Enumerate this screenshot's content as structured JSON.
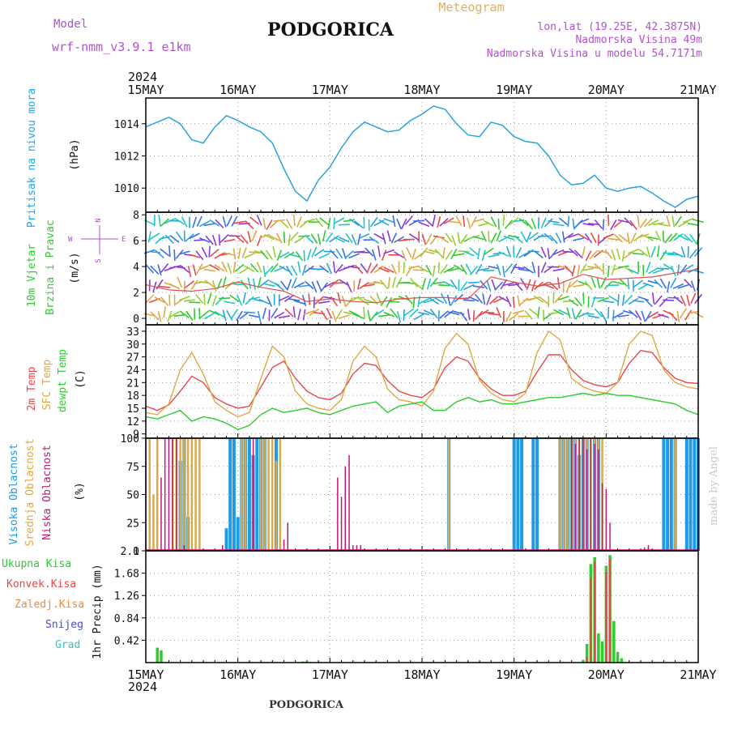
{
  "header": {
    "model_label": "Model",
    "model_name": "wrf-nmm_v3.9.1 e1km",
    "station": "PODGORICA",
    "product": "Meteogram",
    "coords": "lon,lat (19.25E, 42.3875N)",
    "elevation": "Nadmorska Visina 49m",
    "model_elevation": "Nadmorska Visina u modelu 54.7171m",
    "footer_station": "PODGORICA",
    "watermark": "made by Angel"
  },
  "colors": {
    "pressure": "#29a3e0",
    "temp2m": "#e8484a",
    "sfc_temp": "#e0a845",
    "dewpoint": "#2ecc2e",
    "high_cloud": "#1e9be6",
    "mid_cloud": "#e0a845",
    "low_cloud": "#c0187a",
    "total_precip": "#2ecc2e",
    "conv_precip": "#e8484a",
    "header_purple": "#b152d0",
    "header_orange": "#e0b060"
  },
  "time_axis": {
    "year": "2024",
    "day_labels": [
      "15MAY",
      "16MAY",
      "17MAY",
      "18MAY",
      "19MAY",
      "20MAY",
      "21MAY"
    ],
    "hours_total": 144
  },
  "chart_data": [
    {
      "type": "line",
      "panel": "pressure",
      "ylabel": "Pritisak na nivou mora",
      "unit": "(hPa)",
      "ylim": [
        1008.5,
        1015.6
      ],
      "yticks": [
        1010,
        1012,
        1014
      ],
      "grid": true,
      "x_hours": [
        0,
        3,
        6,
        9,
        12,
        15,
        18,
        21,
        24,
        27,
        30,
        33,
        36,
        39,
        42,
        45,
        48,
        51,
        54,
        57,
        60,
        63,
        66,
        69,
        72,
        75,
        78,
        81,
        84,
        87,
        90,
        93,
        96,
        99,
        102,
        105,
        108,
        111,
        114,
        117,
        120,
        123,
        126,
        129,
        132,
        135,
        138,
        141,
        144
      ],
      "series": [
        {
          "name": "",
          "values": [
            1013.8,
            1014.1,
            1014.4,
            1014.0,
            1013.0,
            1012.8,
            1013.8,
            1014.5,
            1014.2,
            1013.8,
            1013.5,
            1012.8,
            1011.2,
            1009.8,
            1009.2,
            1010.5,
            1011.3,
            1012.5,
            1013.5,
            1014.1,
            1013.8,
            1013.5,
            1013.6,
            1014.2,
            1014.6,
            1015.1,
            1014.9,
            1014.0,
            1013.3,
            1013.2,
            1014.1,
            1013.9,
            1013.2,
            1012.9,
            1012.8,
            1012.0,
            1010.8,
            1010.2,
            1010.3,
            1010.8,
            1010.0,
            1009.8,
            1010.0,
            1010.1,
            1009.7,
            1009.2,
            1008.8,
            1009.3,
            1009.5
          ]
        }
      ]
    },
    {
      "type": "line",
      "panel": "wind",
      "ylabel": "10m Vjetar Brzina i Pravac",
      "unit": "(m/s)",
      "direction_legend": [
        "N",
        "W",
        "E",
        "S"
      ],
      "ylim": [
        -0.5,
        8.2
      ],
      "yticks": [
        0,
        2,
        4,
        6,
        8
      ],
      "grid": true,
      "x_hours": [
        0,
        6,
        12,
        18,
        24,
        30,
        36,
        42,
        48,
        54,
        60,
        66,
        72,
        78,
        84,
        90,
        96,
        102,
        108,
        114,
        120,
        126,
        132,
        138,
        144
      ],
      "series": [
        {
          "name": "",
          "values": [
            2.6,
            2.2,
            2.1,
            2.3,
            2.8,
            2.4,
            2.1,
            1.3,
            1.5,
            1.3,
            1.2,
            1.5,
            1.6,
            1.6,
            1.5,
            3.2,
            2.8,
            2.5,
            2.7,
            3.4,
            3.0,
            3.1,
            3.2,
            3.5,
            3.8
          ]
        }
      ]
    },
    {
      "type": "line",
      "panel": "temperature",
      "ylabel": "2m Temp / SFC Temp / dewpt Temp",
      "unit": "(C)",
      "ylim": [
        8,
        34.5
      ],
      "yticks": [
        9,
        12,
        15,
        18,
        21,
        24,
        27,
        30,
        33
      ],
      "grid": true,
      "x_hours": [
        0,
        3,
        6,
        9,
        12,
        15,
        18,
        21,
        24,
        27,
        30,
        33,
        36,
        39,
        42,
        45,
        48,
        51,
        54,
        57,
        60,
        63,
        66,
        69,
        72,
        75,
        78,
        81,
        84,
        87,
        90,
        93,
        96,
        99,
        102,
        105,
        108,
        111,
        114,
        117,
        120,
        123,
        126,
        129,
        132,
        135,
        138,
        141,
        144
      ],
      "series": [
        {
          "name": "2m Temp",
          "values": [
            15.5,
            14.5,
            15.8,
            19.0,
            22.5,
            21.0,
            17.5,
            16.0,
            15.0,
            15.5,
            20.0,
            24.5,
            26.0,
            22.0,
            19.0,
            17.5,
            17.0,
            18.5,
            23.0,
            25.5,
            25.0,
            21.5,
            19.0,
            18.0,
            17.5,
            19.5,
            24.5,
            27.0,
            26.0,
            22.0,
            19.5,
            18.0,
            18.0,
            19.0,
            23.5,
            27.5,
            27.5,
            24.0,
            21.5,
            20.5,
            20.0,
            21.0,
            25.5,
            28.5,
            28.0,
            24.5,
            22.0,
            21.0,
            20.8
          ]
        },
        {
          "name": "SFC Temp",
          "values": [
            14.0,
            13.5,
            16.0,
            24.0,
            28.0,
            23.0,
            16.5,
            14.5,
            13.0,
            14.0,
            22.0,
            29.5,
            27.0,
            19.0,
            16.0,
            15.0,
            14.5,
            17.0,
            26.0,
            29.5,
            27.0,
            19.5,
            17.0,
            16.5,
            15.5,
            19.0,
            29.0,
            32.5,
            30.0,
            21.5,
            18.5,
            17.0,
            16.5,
            18.5,
            28.0,
            33.0,
            31.0,
            22.0,
            20.0,
            19.0,
            18.5,
            21.0,
            30.0,
            33.0,
            32.0,
            24.0,
            21.0,
            20.0,
            19.5
          ]
        },
        {
          "name": "dewpt Temp",
          "values": [
            13.0,
            12.5,
            13.5,
            14.5,
            12.0,
            13.0,
            12.5,
            11.5,
            10.0,
            11.0,
            13.5,
            15.0,
            14.0,
            14.5,
            15.0,
            14.0,
            13.5,
            14.5,
            15.5,
            16.0,
            16.5,
            14.0,
            15.5,
            16.0,
            16.5,
            14.5,
            14.5,
            16.5,
            17.5,
            16.5,
            17.0,
            16.0,
            16.0,
            16.5,
            17.0,
            17.5,
            17.5,
            18.0,
            18.5,
            18.0,
            18.5,
            18.0,
            18.0,
            17.5,
            17.0,
            16.5,
            16.0,
            14.5,
            13.5
          ]
        }
      ]
    },
    {
      "type": "bar",
      "panel": "cloud_cover",
      "ylabel": "Visoka Oblacnost / Srednja Oblacnost / Niska Oblacnost",
      "unit": "(%)",
      "ylim": [
        0,
        100
      ],
      "yticks": [
        0,
        25,
        50,
        75,
        100
      ],
      "grid": true,
      "series": [
        {
          "name": "Visoka Oblacnost",
          "x_hours": [
            9,
            10,
            11,
            21,
            22,
            23,
            24,
            25,
            26,
            27,
            28,
            29,
            30,
            31,
            34,
            79,
            96,
            97,
            98,
            101,
            102,
            108,
            109,
            110,
            111,
            112,
            113,
            114,
            115,
            117,
            118,
            135,
            136,
            137,
            138,
            141,
            142,
            143,
            144
          ],
          "values": [
            80,
            100,
            30,
            20,
            100,
            100,
            30,
            100,
            100,
            100,
            85,
            100,
            100,
            100,
            100,
            100,
            100,
            100,
            100,
            100,
            100,
            100,
            100,
            100,
            100,
            100,
            85,
            100,
            100,
            100,
            100,
            100,
            100,
            100,
            100,
            100,
            100,
            100,
            100
          ]
        },
        {
          "name": "Srednja Oblacnost",
          "x_hours": [
            1,
            2,
            3,
            7,
            8,
            9,
            10,
            11,
            12,
            13,
            14,
            25,
            26,
            30,
            31,
            32,
            33,
            34,
            35,
            79,
            108,
            109,
            110,
            111,
            112,
            113,
            114,
            115,
            116,
            117,
            118,
            119,
            138
          ],
          "values": [
            100,
            50,
            100,
            100,
            100,
            100,
            100,
            100,
            100,
            100,
            100,
            100,
            100,
            100,
            100,
            100,
            100,
            80,
            100,
            100,
            100,
            100,
            100,
            100,
            100,
            100,
            100,
            100,
            100,
            100,
            100,
            100,
            100
          ]
        },
        {
          "name": "Niska Oblacnost",
          "x_hours": [
            0,
            4,
            5,
            6,
            7,
            8,
            10,
            20,
            28,
            36,
            37,
            50,
            51,
            52,
            53,
            54,
            55,
            56,
            111,
            112,
            113,
            114,
            115,
            116,
            117,
            118,
            119,
            120,
            121,
            130,
            131
          ],
          "values": [
            100,
            65,
            100,
            100,
            100,
            100,
            5,
            5,
            100,
            10,
            25,
            65,
            48,
            75,
            85,
            5,
            5,
            5,
            100,
            95,
            100,
            100,
            90,
            100,
            95,
            90,
            60,
            55,
            25,
            3,
            5
          ]
        }
      ]
    },
    {
      "type": "bar",
      "panel": "precipitation",
      "ylabel": "1hr Precip",
      "unit": "(mm)",
      "legend": [
        "Ukupna Kisa",
        "Konvek.Kisa",
        "Zaledj.Kisa",
        "Snijeg",
        "Grad"
      ],
      "legend_colors": [
        "#2ecc2e",
        "#e8484a",
        "#f08a3c",
        "#4b4bdc",
        "#2cc6c6"
      ],
      "ylim": [
        0,
        2.1
      ],
      "yticks": [
        0.42,
        0.84,
        1.26,
        1.68,
        2.1
      ],
      "grid": true,
      "series": [
        {
          "name": "Ukupna Kisa",
          "x_hours": [
            3,
            4,
            41,
            42,
            43,
            114,
            115,
            116,
            117,
            118,
            119,
            120,
            121,
            122,
            123,
            124
          ],
          "values": [
            0.28,
            0.23,
            0.02,
            0.02,
            0.01,
            0.05,
            0.35,
            1.85,
            1.98,
            0.55,
            0.4,
            1.82,
            2.02,
            0.78,
            0.2,
            0.08
          ]
        },
        {
          "name": "Konvek.Kisa",
          "x_hours": [
            115,
            116,
            117,
            120,
            121
          ],
          "values": [
            0.1,
            1.6,
            1.9,
            1.7,
            1.95
          ]
        }
      ]
    }
  ]
}
